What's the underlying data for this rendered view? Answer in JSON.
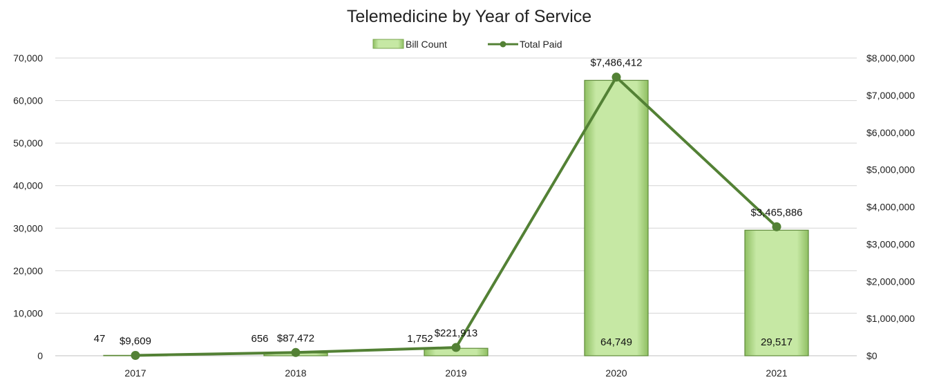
{
  "chart_data": {
    "type": "bar",
    "title": "Telemedicine by Year of Service",
    "categories": [
      "2017",
      "2018",
      "2019",
      "2020",
      "2021"
    ],
    "series": [
      {
        "name": "Bill Count",
        "type": "bar",
        "axis": "left",
        "values": [
          47,
          656,
          1752,
          64749,
          29517
        ],
        "labels": [
          "47",
          "656",
          "1,752",
          "64,749",
          "29,517"
        ]
      },
      {
        "name": "Total Paid",
        "type": "line",
        "axis": "right",
        "values": [
          9609,
          87472,
          221913,
          7486412,
          3465886
        ],
        "labels": [
          "$9,609",
          "$87,472",
          "$221,913",
          "$7,486,412",
          "$3,465,886"
        ]
      }
    ],
    "y_left": {
      "min": 0,
      "max": 70000,
      "ticks": [
        0,
        10000,
        20000,
        30000,
        40000,
        50000,
        60000,
        70000
      ],
      "tick_labels": [
        "0",
        "10,000",
        "20,000",
        "30,000",
        "40,000",
        "50,000",
        "60,000",
        "70,000"
      ]
    },
    "y_right": {
      "min": 0,
      "max": 8000000,
      "ticks": [
        0,
        1000000,
        2000000,
        3000000,
        4000000,
        5000000,
        6000000,
        7000000,
        8000000
      ],
      "tick_labels": [
        "$0",
        "$1,000,000",
        "$2,000,000",
        "$3,000,000",
        "$4,000,000",
        "$5,000,000",
        "$6,000,000",
        "$7,000,000",
        "$8,000,000"
      ]
    },
    "grid": true,
    "legend": "top-center",
    "colors": {
      "bar_fill": "#b5dc8d",
      "bar_stroke": "#5e8a38",
      "line": "#538135",
      "grid": "#d4d4d4"
    }
  }
}
